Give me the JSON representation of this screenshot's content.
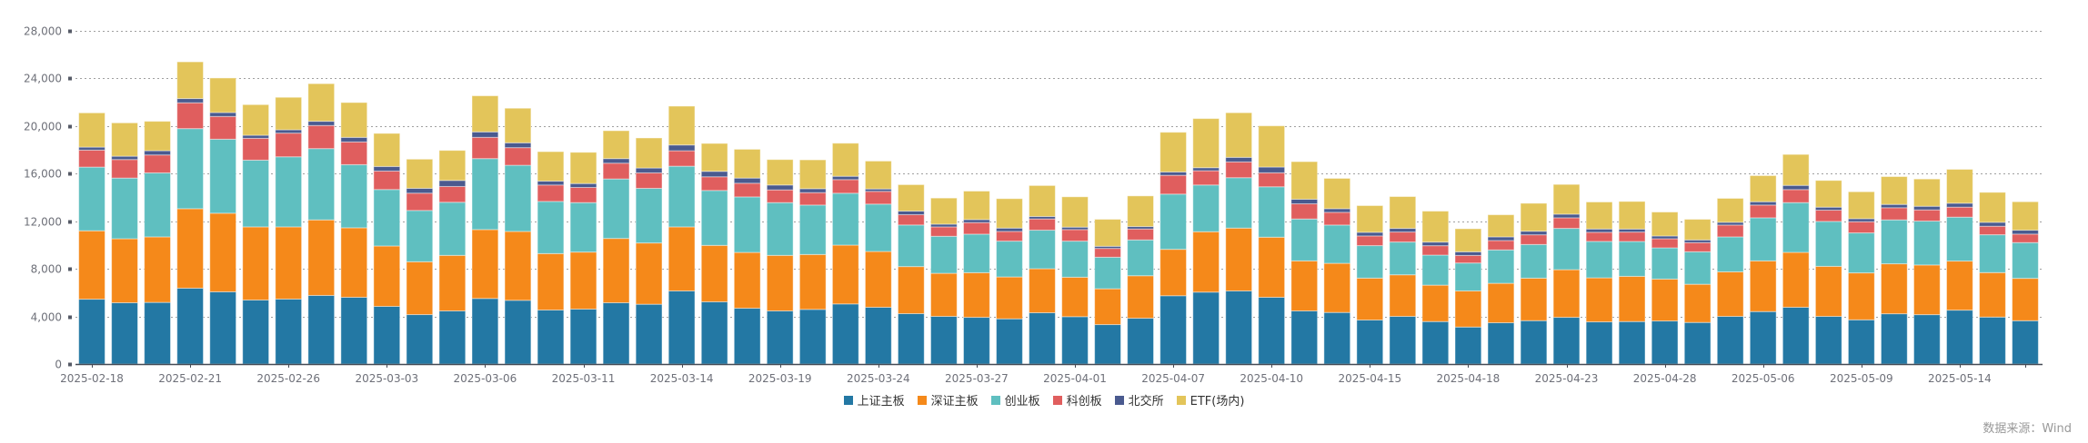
{
  "chart_data": {
    "type": "bar",
    "stacked": true,
    "title": "",
    "xlabel": "",
    "ylabel": "",
    "ylim": [
      0,
      28000
    ],
    "yticks": [
      0,
      4000,
      8000,
      12000,
      16000,
      20000,
      24000,
      28000
    ],
    "ytick_labels": [
      "0",
      "4,000",
      "8,000",
      "12,000",
      "16,000",
      "20,000",
      "24,000",
      "28,000"
    ],
    "grid": true,
    "legend_position": "bottom-center",
    "categories": [
      "2025-02-18",
      "2025-02-19",
      "2025-02-20",
      "2025-02-21",
      "2025-02-24",
      "2025-02-25",
      "2025-02-26",
      "2025-02-27",
      "2025-02-28",
      "2025-03-03",
      "2025-03-04",
      "2025-03-05",
      "2025-03-06",
      "2025-03-07",
      "2025-03-10",
      "2025-03-11",
      "2025-03-12",
      "2025-03-13",
      "2025-03-14",
      "2025-03-17",
      "2025-03-18",
      "2025-03-19",
      "2025-03-20",
      "2025-03-21",
      "2025-03-24",
      "2025-03-25",
      "2025-03-26",
      "2025-03-27",
      "2025-03-28",
      "2025-03-31",
      "2025-04-01",
      "2025-04-02",
      "2025-04-03",
      "2025-04-07",
      "2025-04-08",
      "2025-04-09",
      "2025-04-10",
      "2025-04-11",
      "2025-04-14",
      "2025-04-15",
      "2025-04-16",
      "2025-04-17",
      "2025-04-18",
      "2025-04-21",
      "2025-04-22",
      "2025-04-23",
      "2025-04-24",
      "2025-04-25",
      "2025-04-28",
      "2025-04-29",
      "2025-04-30",
      "2025-05-06",
      "2025-05-07",
      "2025-05-08",
      "2025-05-09",
      "2025-05-12",
      "2025-05-13",
      "2025-05-14",
      "2025-05-15",
      "2025-05-16"
    ],
    "xtick_labels_shown": [
      "2025-02-18",
      "2025-02-21",
      "2025-02-26",
      "2025-03-03",
      "2025-03-06",
      "2025-03-11",
      "2025-03-14",
      "2025-03-19",
      "2025-03-24",
      "2025-03-27",
      "2025-04-01",
      "2025-04-07",
      "2025-04-10",
      "2025-04-15",
      "2025-04-18",
      "2025-04-23",
      "2025-04-28",
      "2025-05-06",
      "2025-05-09",
      "2025-05-14"
    ],
    "label_interval": 3,
    "series": [
      {
        "name": "上证主板",
        "color": "#2378a4",
        "values": [
          5450,
          5150,
          5180,
          6375,
          6070,
          5380,
          5460,
          5765,
          5610,
          4845,
          4155,
          4465,
          5510,
          5355,
          4540,
          4615,
          5150,
          5025,
          6145,
          5230,
          4690,
          4465,
          4590,
          5050,
          4770,
          4235,
          4005,
          3925,
          3800,
          4310,
          3980,
          3315,
          3850,
          5740,
          6045,
          6145,
          5610,
          4465,
          4335,
          3700,
          4005,
          3570,
          3110,
          3470,
          3645,
          3925,
          3545,
          3570,
          3620,
          3495,
          4005,
          4410,
          4770,
          4005,
          3715,
          4225,
          4150,
          4530,
          3945,
          3640
        ]
      },
      {
        "name": "深证主板",
        "color": "#f5891a",
        "values": [
          5750,
          5380,
          5505,
          6680,
          6605,
          6145,
          6065,
          6350,
          5840,
          5075,
          4440,
          4665,
          5790,
          5790,
          4740,
          4795,
          5405,
          5150,
          5380,
          4740,
          4690,
          4665,
          4615,
          4945,
          4690,
          3955,
          3620,
          3750,
          3520,
          3700,
          3315,
          3010,
          3570,
          3900,
          5075,
          5280,
          5050,
          4205,
          4130,
          3520,
          3495,
          3060,
          3035,
          3315,
          3570,
          4005,
          3700,
          3800,
          3520,
          3210,
          3745,
          4260,
          4615,
          4205,
          3945,
          4200,
          4175,
          4125,
          3740,
          3560
        ]
      },
      {
        "name": "创业板",
        "color": "#5fbfc0",
        "values": [
          5350,
          5100,
          5380,
          6730,
          6220,
          5610,
          5890,
          5990,
          5305,
          4745,
          4310,
          4465,
          5965,
          5560,
          4385,
          4155,
          5000,
          4590,
          5100,
          4615,
          4665,
          4435,
          4155,
          4360,
          3980,
          3495,
          3110,
          3240,
          3010,
          3240,
          3035,
          2650,
          3010,
          4640,
          3925,
          4235,
          4235,
          3520,
          3215,
          2730,
          2755,
          2525,
          2345,
          2805,
          2830,
          3470,
          3060,
          2930,
          2625,
          2730,
          2935,
          3620,
          4180,
          3775,
          3360,
          3690,
          3690,
          3690,
          3180,
          3005
        ]
      },
      {
        "name": "科创板",
        "color": "#e05e5e",
        "values": [
          1430,
          1555,
          1505,
          2170,
          1910,
          1835,
          1990,
          1940,
          1910,
          1555,
          1455,
          1325,
          1785,
          1480,
          1380,
          1275,
          1325,
          1300,
          1300,
          1150,
          1150,
          1070,
          1045,
          1145,
          1070,
          865,
          790,
          970,
          815,
          945,
          970,
          740,
          920,
          1580,
          1200,
          1325,
          1175,
          1275,
          1070,
          815,
          840,
          790,
          635,
          790,
          815,
          890,
          765,
          790,
          765,
          765,
          995,
          1070,
          1095,
          945,
          940,
          1020,
          940,
          840,
          715,
          715
        ]
      },
      {
        "name": "北交所",
        "color": "#4a5a8f",
        "values": [
          250,
          280,
          357,
          357,
          330,
          255,
          280,
          357,
          383,
          383,
          408,
          510,
          460,
          408,
          330,
          330,
          385,
          410,
          485,
          460,
          435,
          410,
          330,
          280,
          205,
          305,
          230,
          255,
          280,
          205,
          205,
          180,
          205,
          280,
          255,
          385,
          485,
          385,
          305,
          305,
          305,
          305,
          305,
          305,
          305,
          305,
          280,
          255,
          230,
          230,
          230,
          280,
          355,
          255,
          255,
          280,
          305,
          330,
          330,
          330
        ]
      },
      {
        "name": "ETF(场内)",
        "color": "#e3c55a",
        "values": [
          2880,
          2805,
          2473,
          3085,
          2905,
          2575,
          2730,
          3160,
          2930,
          2780,
          2450,
          2525,
          3035,
          2905,
          2475,
          2625,
          2345,
          2525,
          3265,
          2345,
          2420,
          2140,
          2425,
          2780,
          2345,
          2220,
          2195,
          2395,
          2475,
          2600,
          2550,
          2270,
          2575,
          3340,
          4130,
          3750,
          3465,
          3160,
          2550,
          2245,
          2675,
          2600,
          1940,
          1860,
          2345,
          2500,
          2270,
          2320,
          2015,
          1735,
          2015,
          2195,
          2600,
          2245,
          2265,
          2340,
          2290,
          2850,
          2520,
          2390
        ]
      }
    ]
  },
  "legend": {
    "items": [
      {
        "label": "上证主板",
        "color": "#2378a4"
      },
      {
        "label": "深证主板",
        "color": "#f5891a"
      },
      {
        "label": "创业板",
        "color": "#5fbfc0"
      },
      {
        "label": "科创板",
        "color": "#e05e5e"
      },
      {
        "label": "北交所",
        "color": "#4a5a8f"
      },
      {
        "label": "ETF(场内)",
        "color": "#e3c55a"
      }
    ]
  },
  "footer": {
    "source": "数据来源：Wind"
  }
}
